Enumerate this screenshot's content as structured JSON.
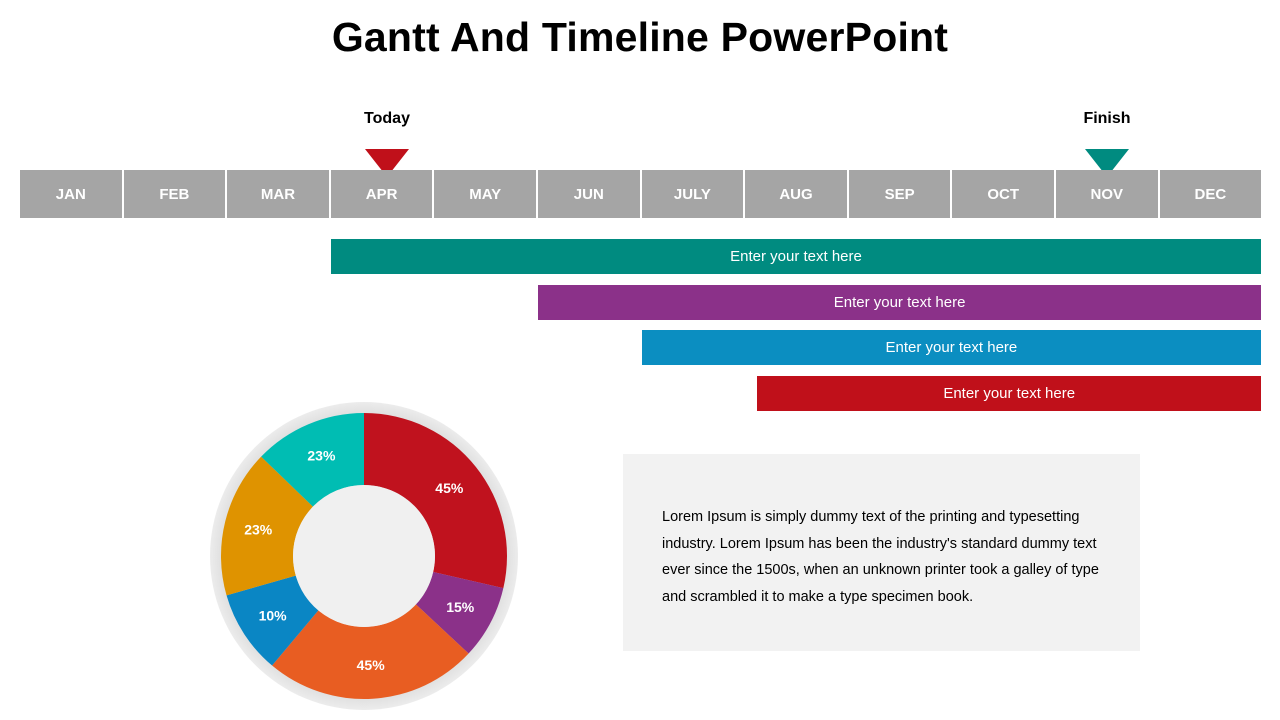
{
  "slide": {
    "title": "Gantt And Timeline PowerPoint",
    "today_label": "Today",
    "finish_label": "Finish",
    "today_color": "#c0101a",
    "finish_color": "#008b80"
  },
  "months": [
    "JAN",
    "FEB",
    "MAR",
    "APR",
    "MAY",
    "JUN",
    "JULY",
    "AUG",
    "SEP",
    "OCT",
    "NOV",
    "DEC"
  ],
  "month_color": "#a5a5a5",
  "tasks": [
    {
      "label": "Enter your text here",
      "color": "#008b80",
      "start_month": "APR",
      "end_month": "DEC"
    },
    {
      "label": "Enter your text here",
      "color": "#8b3189",
      "start_month": "JUN",
      "end_month": "DEC"
    },
    {
      "label": "Enter your text here",
      "color": "#0b8ec1",
      "start_month": "JULY",
      "end_month": "DEC"
    },
    {
      "label": "Enter your text here",
      "color": "#c0101a",
      "start_month": "AUG",
      "end_month": "DEC"
    }
  ],
  "chart_data": {
    "type": "pie",
    "donut": true,
    "slices": [
      {
        "label": "45%",
        "value": 45,
        "color": "#c0121e"
      },
      {
        "label": "15%",
        "value": 15,
        "color": "#8b3189"
      },
      {
        "label": "45%",
        "value": 45,
        "color": "#e85d22"
      },
      {
        "label": "10%",
        "value": 10,
        "color": "#0a86c4"
      },
      {
        "label": "23%",
        "value": 23,
        "color": "#df9300"
      },
      {
        "label": "23%",
        "value": 23,
        "color": "#00bdb3"
      }
    ]
  },
  "textbox": {
    "body": "Lorem Ipsum is simply dummy text of the printing and typesetting industry. Lorem Ipsum has been the industry's standard dummy text ever since the 1500s, when an unknown printer took a galley of type and scrambled it to make a type specimen book."
  }
}
